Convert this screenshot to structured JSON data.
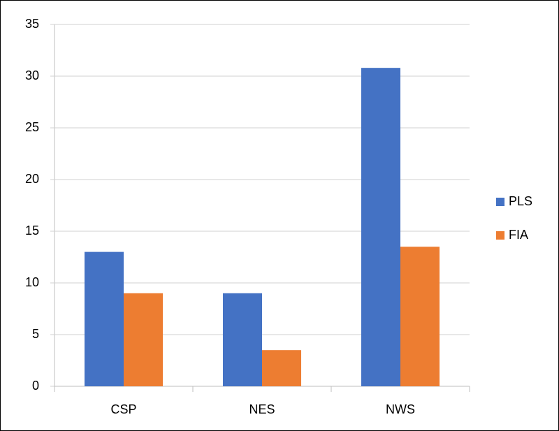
{
  "chart_data": {
    "type": "bar",
    "categories": [
      "CSP",
      "NES",
      "NWS"
    ],
    "series": [
      {
        "name": "PLS",
        "color": "#4472c4",
        "values": [
          13,
          9,
          30.8
        ]
      },
      {
        "name": "FIA",
        "color": "#ed7d31",
        "values": [
          9,
          3.5,
          13.5
        ]
      }
    ],
    "ylim": [
      0,
      35
    ],
    "yticks": [
      0,
      5,
      10,
      15,
      20,
      25,
      30,
      35
    ],
    "grid": true,
    "legend": "right"
  }
}
